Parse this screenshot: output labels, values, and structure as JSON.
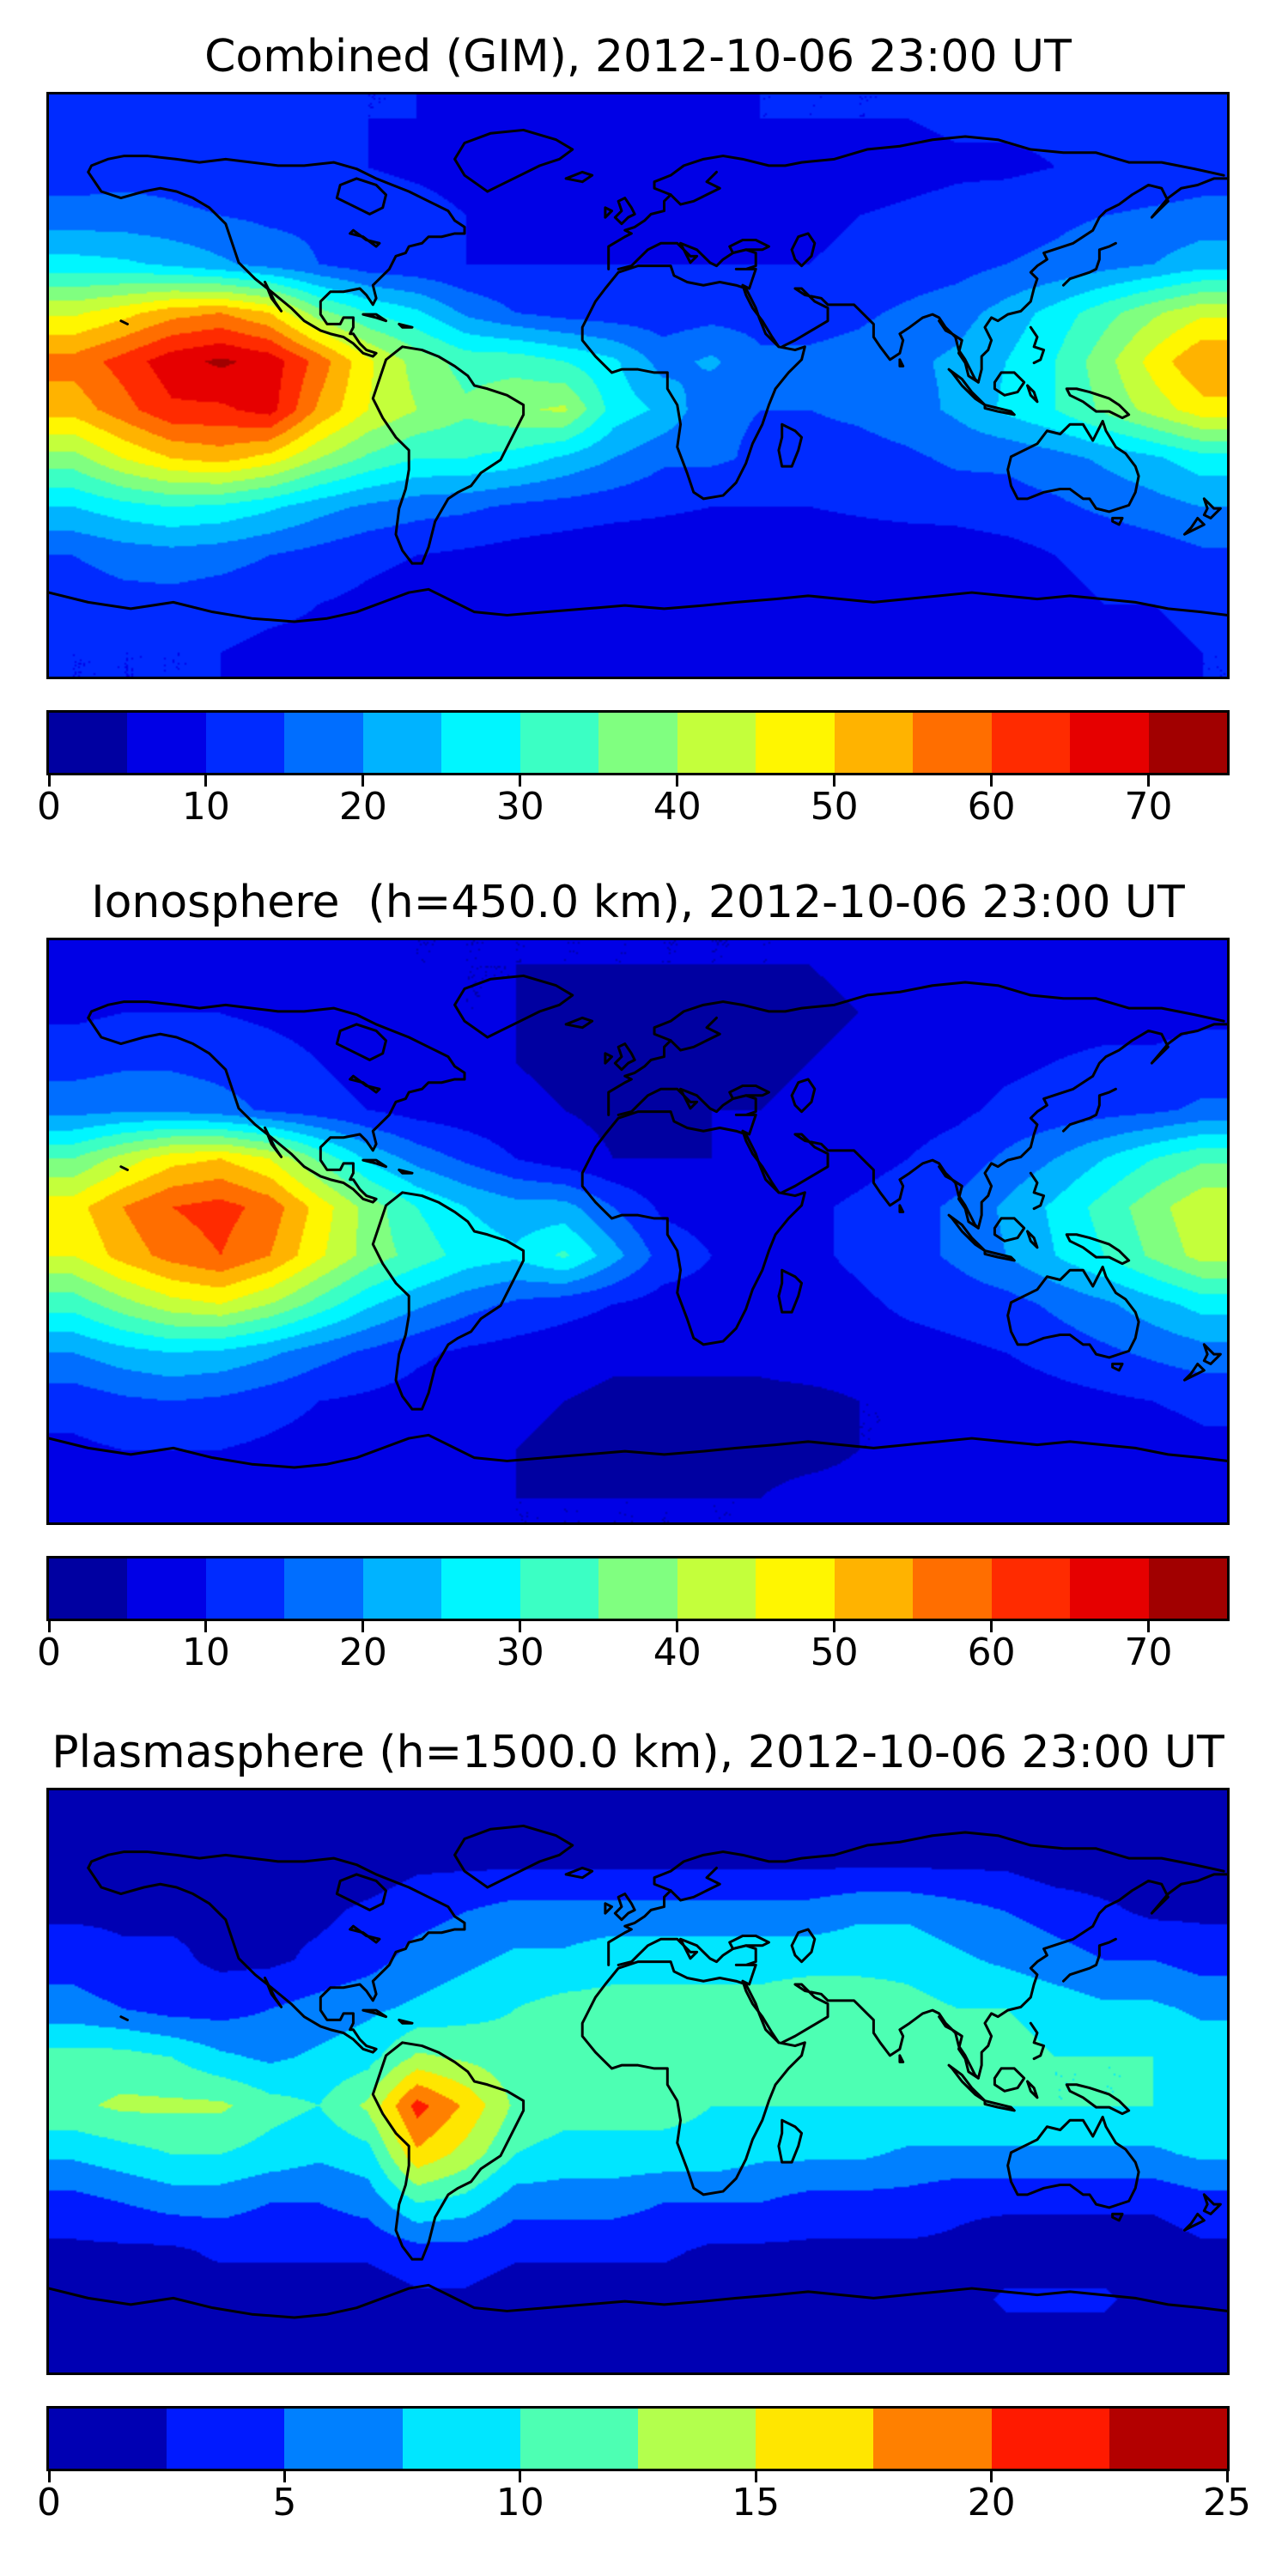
{
  "figure": {
    "background": "#ffffff",
    "coastline_color": "#000000",
    "frame_color": "#000000"
  },
  "chart_data": [
    {
      "id": "combined-gim",
      "type": "heatmap",
      "title": "Combined (GIM), 2012-10-06 23:00 UT",
      "colormap": "jet",
      "legend_position": "bottom-colorbar",
      "scale": {
        "min": 0,
        "max": 75,
        "n_colors": 15,
        "ticks": [
          0,
          10,
          20,
          30,
          40,
          50,
          60,
          70
        ]
      },
      "colors": [
        "#0000A1",
        "#0000E6",
        "#002BFF",
        "#006EFF",
        "#00B3FF",
        "#00F6FF",
        "#3BFFC4",
        "#80FF80",
        "#C4FF3B",
        "#FFF600",
        "#FFB300",
        "#FF6E00",
        "#FF2B00",
        "#E60000",
        "#A10000"
      ],
      "map_extent": {
        "lon": [
          -180,
          180
        ],
        "lat": [
          -90,
          90
        ]
      },
      "grid": {
        "cols": 24,
        "rows": 12,
        "lon_start": -172.5,
        "lon_step": 15,
        "lat_start": 82.5,
        "lat_step": -15
      },
      "values": [
        [
          12,
          12,
          12,
          12,
          12,
          11,
          10,
          10,
          9,
          9,
          9,
          9,
          9,
          9,
          10,
          10,
          10,
          10,
          11,
          11,
          11,
          12,
          12,
          12
        ],
        [
          12,
          13,
          13,
          12,
          11,
          10,
          10,
          9,
          8,
          7,
          6,
          6,
          6,
          6,
          6,
          6,
          7,
          8,
          9,
          9,
          10,
          10,
          11,
          12
        ],
        [
          17,
          17,
          16,
          15,
          14,
          14,
          13,
          12,
          10,
          9,
          8,
          8,
          8,
          8,
          9,
          9,
          10,
          11,
          12,
          13,
          14,
          15,
          16,
          17
        ],
        [
          27,
          26,
          24,
          21,
          18,
          15,
          12,
          11,
          10,
          10,
          10,
          10,
          10,
          10,
          10,
          10,
          11,
          12,
          13,
          15,
          16,
          18,
          20,
          23
        ],
        [
          44,
          48,
          53,
          55,
          50,
          37,
          30,
          26,
          19,
          15,
          13,
          12,
          12,
          13,
          13,
          13,
          14,
          16,
          18,
          22,
          27,
          33,
          39,
          44
        ],
        [
          57,
          62,
          68,
          71,
          68,
          58,
          46,
          38,
          33,
          33,
          30,
          26,
          18,
          21,
          16,
          16,
          17,
          19,
          21,
          25,
          30,
          38,
          47,
          55
        ],
        [
          52,
          58,
          64,
          64,
          67,
          54,
          45,
          40,
          36,
          39,
          41,
          28,
          24,
          16,
          15,
          15,
          16,
          18,
          21,
          26,
          30,
          36,
          42,
          48
        ],
        [
          38,
          45,
          50,
          52,
          48,
          40,
          34,
          30,
          30,
          28,
          24,
          20,
          16,
          16,
          14,
          13,
          13,
          14,
          16,
          16,
          18,
          21,
          24,
          28
        ],
        [
          25,
          28,
          30,
          29,
          26,
          22,
          19,
          17,
          16,
          14,
          13,
          12,
          11,
          10,
          10,
          10,
          11,
          12,
          12,
          13,
          14,
          16,
          18,
          20
        ],
        [
          15,
          17,
          18,
          17,
          15,
          13,
          11,
          10,
          9,
          8,
          7,
          6,
          6,
          6,
          6,
          6,
          6,
          6,
          7,
          8,
          10,
          11,
          12,
          14
        ],
        [
          12,
          13,
          13,
          12,
          11,
          10,
          9,
          8,
          8,
          7,
          6,
          5,
          5,
          5,
          6,
          6,
          7,
          7,
          8,
          8,
          9,
          10,
          10,
          11
        ],
        [
          10,
          10,
          10,
          10,
          9,
          9,
          9,
          8,
          8,
          8,
          8,
          7,
          7,
          7,
          8,
          8,
          8,
          8,
          8,
          9,
          9,
          9,
          9,
          10
        ]
      ]
    },
    {
      "id": "ionosphere-450km",
      "type": "heatmap",
      "title": "Ionosphere  (h=450.0 km), 2012-10-06 23:00 UT",
      "colormap": "jet",
      "legend_position": "bottom-colorbar",
      "scale": {
        "min": 0,
        "max": 75,
        "n_colors": 15,
        "ticks": [
          0,
          10,
          20,
          30,
          40,
          50,
          60,
          70
        ]
      },
      "colors": [
        "#0000A1",
        "#0000E6",
        "#002BFF",
        "#006EFF",
        "#00B3FF",
        "#00F6FF",
        "#3BFFC4",
        "#80FF80",
        "#C4FF3B",
        "#FFF600",
        "#FFB300",
        "#FF6E00",
        "#FF2B00",
        "#E60000",
        "#A10000"
      ],
      "map_extent": {
        "lon": [
          -180,
          180
        ],
        "lat": [
          -90,
          90
        ]
      },
      "grid": {
        "cols": 24,
        "rows": 12,
        "lon_start": -172.5,
        "lon_step": 15,
        "lat_start": 82.5,
        "lat_step": -15
      },
      "values": [
        [
          7,
          7,
          7,
          7,
          7,
          6,
          6,
          5,
          5,
          5,
          5,
          5,
          5,
          5,
          5,
          5,
          6,
          6,
          6,
          6,
          7,
          7,
          7,
          7
        ],
        [
          9,
          10,
          10,
          10,
          9,
          8,
          7,
          6,
          5,
          5,
          4,
          4,
          4,
          4,
          4,
          4,
          5,
          6,
          7,
          7,
          8,
          8,
          8,
          9
        ],
        [
          13,
          14,
          14,
          13,
          12,
          10,
          8,
          7,
          6,
          5,
          4,
          4,
          4,
          4,
          4,
          5,
          6,
          7,
          8,
          9,
          10,
          11,
          11,
          12
        ],
        [
          18,
          19,
          19,
          17,
          14,
          12,
          10,
          8,
          7,
          6,
          5,
          4,
          4,
          5,
          5,
          6,
          7,
          8,
          9,
          11,
          12,
          13,
          14,
          16
        ],
        [
          35,
          42,
          48,
          50,
          45,
          34,
          24,
          18,
          14,
          10,
          7,
          5,
          5,
          5,
          6,
          7,
          8,
          10,
          12,
          16,
          20,
          25,
          30,
          34
        ],
        [
          48,
          55,
          60,
          62,
          58,
          48,
          38,
          30,
          25,
          22,
          22,
          15,
          9,
          8,
          8,
          9,
          11,
          13,
          16,
          21,
          26,
          32,
          38,
          44
        ],
        [
          45,
          52,
          57,
          60,
          55,
          46,
          38,
          33,
          28,
          26,
          31,
          22,
          13,
          10,
          9,
          9,
          11,
          13,
          16,
          20,
          25,
          30,
          36,
          42
        ],
        [
          32,
          38,
          43,
          45,
          40,
          33,
          26,
          21,
          17,
          14,
          12,
          10,
          8,
          8,
          8,
          8,
          9,
          11,
          12,
          13,
          16,
          19,
          23,
          27
        ],
        [
          20,
          23,
          25,
          24,
          21,
          17,
          14,
          11,
          9,
          8,
          7,
          6,
          6,
          6,
          6,
          7,
          7,
          8,
          9,
          10,
          12,
          14,
          16,
          18
        ],
        [
          12,
          14,
          15,
          14,
          12,
          10,
          9,
          8,
          7,
          6,
          5,
          4,
          4,
          4,
          4,
          4,
          5,
          5,
          6,
          7,
          8,
          9,
          10,
          11
        ],
        [
          9,
          10,
          10,
          10,
          9,
          8,
          7,
          6,
          6,
          5,
          4,
          4,
          4,
          4,
          4,
          4,
          5,
          5,
          6,
          6,
          7,
          8,
          8,
          9
        ],
        [
          8,
          8,
          8,
          8,
          7,
          7,
          6,
          6,
          6,
          5,
          5,
          5,
          5,
          5,
          5,
          6,
          6,
          6,
          6,
          7,
          7,
          7,
          7,
          8
        ]
      ]
    },
    {
      "id": "plasmasphere-1500km",
      "type": "heatmap",
      "title": "Plasmasphere (h=1500.0 km), 2012-10-06 23:00 UT",
      "colormap": "jet",
      "legend_position": "bottom-colorbar",
      "scale": {
        "min": 0,
        "max": 25,
        "n_colors": 10,
        "ticks": [
          0,
          5,
          10,
          15,
          20,
          25
        ]
      },
      "colors": [
        "#0000B3",
        "#001AFF",
        "#0080FF",
        "#00E6FF",
        "#4DFFB3",
        "#B3FF4D",
        "#FFE600",
        "#FF8000",
        "#FF1A00",
        "#B30000"
      ],
      "map_extent": {
        "lon": [
          -180,
          180
        ],
        "lat": [
          -90,
          90
        ]
      },
      "grid": {
        "cols": 24,
        "rows": 12,
        "lon_start": -172.5,
        "lon_step": 15,
        "lat_start": 82.5,
        "lat_step": -15
      },
      "values": [
        [
          1,
          1,
          1,
          1,
          1,
          1,
          1,
          1,
          1,
          1,
          1,
          1,
          1,
          1,
          1,
          1,
          1,
          1,
          1,
          1,
          1,
          1,
          1,
          1
        ],
        [
          1,
          1,
          1,
          1,
          1,
          1,
          1,
          2,
          2,
          2,
          2,
          2,
          2,
          2,
          2,
          2,
          2,
          2,
          2,
          2,
          1,
          1,
          1,
          1
        ],
        [
          2,
          2,
          2,
          2,
          2,
          2,
          3,
          4,
          5,
          6,
          6,
          6,
          6,
          6,
          6,
          6,
          7,
          7,
          6,
          5,
          4,
          3,
          2,
          2
        ],
        [
          4,
          3,
          3,
          2,
          2,
          3,
          4,
          6,
          7,
          8,
          8,
          9,
          9,
          9,
          9,
          9,
          9,
          9,
          8,
          7,
          6,
          5,
          5,
          4
        ],
        [
          6,
          5,
          4,
          4,
          5,
          6,
          7,
          8,
          9,
          10,
          11,
          11,
          11,
          11,
          11,
          12,
          12,
          11,
          10,
          10,
          9,
          8,
          8,
          7
        ],
        [
          11,
          11,
          10,
          8,
          7,
          8,
          9,
          13,
          12,
          11,
          11,
          11,
          11,
          11,
          12,
          12,
          12,
          12,
          11,
          11,
          10,
          10,
          10,
          9
        ],
        [
          12,
          13,
          13,
          13,
          11,
          10,
          13,
          21,
          17,
          12,
          11,
          11,
          11,
          10,
          10,
          10,
          10,
          10,
          10,
          10,
          10,
          10,
          10,
          10
        ],
        [
          8,
          9,
          10,
          10,
          9,
          8,
          9,
          17,
          14,
          10,
          9,
          9,
          9,
          9,
          8,
          8,
          8,
          7,
          7,
          7,
          7,
          7,
          7,
          8
        ],
        [
          4,
          5,
          6,
          6,
          5,
          5,
          6,
          10,
          9,
          6,
          6,
          6,
          5,
          5,
          5,
          4,
          4,
          4,
          3,
          3,
          3,
          3,
          3,
          4
        ],
        [
          2,
          2,
          2,
          3,
          3,
          3,
          3,
          4,
          4,
          3,
          3,
          3,
          3,
          2,
          2,
          2,
          2,
          2,
          2,
          1,
          1,
          1,
          1,
          2
        ],
        [
          1,
          1,
          1,
          1,
          1,
          1,
          1,
          2,
          2,
          1,
          1,
          1,
          1,
          1,
          1,
          1,
          1,
          1,
          1,
          3,
          3,
          3,
          1,
          1
        ],
        [
          1,
          1,
          1,
          1,
          1,
          1,
          1,
          1,
          1,
          1,
          1,
          1,
          1,
          1,
          1,
          1,
          1,
          1,
          1,
          1,
          1,
          1,
          1,
          1
        ]
      ]
    }
  ]
}
